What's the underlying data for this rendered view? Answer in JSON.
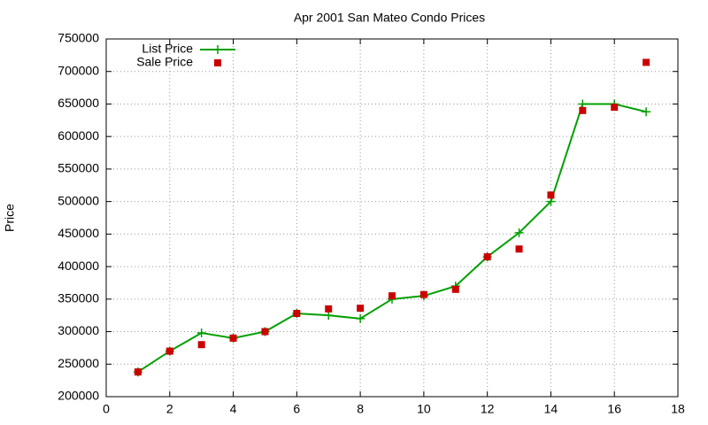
{
  "chart_data": {
    "type": "line",
    "title": "Apr 2001 San Mateo Condo Prices",
    "y_label": "Price",
    "x": [
      1,
      2,
      3,
      4,
      5,
      6,
      7,
      8,
      9,
      10,
      11,
      12,
      13,
      14,
      15,
      16,
      17
    ],
    "series": [
      {
        "name": "List Price",
        "color": "#00a000",
        "marker": "plus",
        "line": true,
        "values": [
          238000,
          270000,
          298000,
          290000,
          300000,
          328000,
          325000,
          320000,
          350000,
          355000,
          370000,
          415000,
          452000,
          500000,
          650000,
          650000,
          638000
        ]
      },
      {
        "name": "Sale Price",
        "color": "#cc0000",
        "marker": "square",
        "line": false,
        "values": [
          238000,
          270000,
          280000,
          290000,
          300000,
          328000,
          335000,
          336000,
          355000,
          357000,
          365000,
          415000,
          427000,
          510000,
          640000,
          645000,
          714000
        ]
      }
    ],
    "xlim": [
      0,
      18
    ],
    "xticks": [
      0,
      2,
      4,
      6,
      8,
      10,
      12,
      14,
      16,
      18
    ],
    "ylim": [
      200000,
      750000
    ],
    "yticks": [
      200000,
      250000,
      300000,
      350000,
      400000,
      450000,
      500000,
      550000,
      600000,
      650000,
      700000,
      750000
    ],
    "grid": true,
    "legend": "top-left"
  }
}
